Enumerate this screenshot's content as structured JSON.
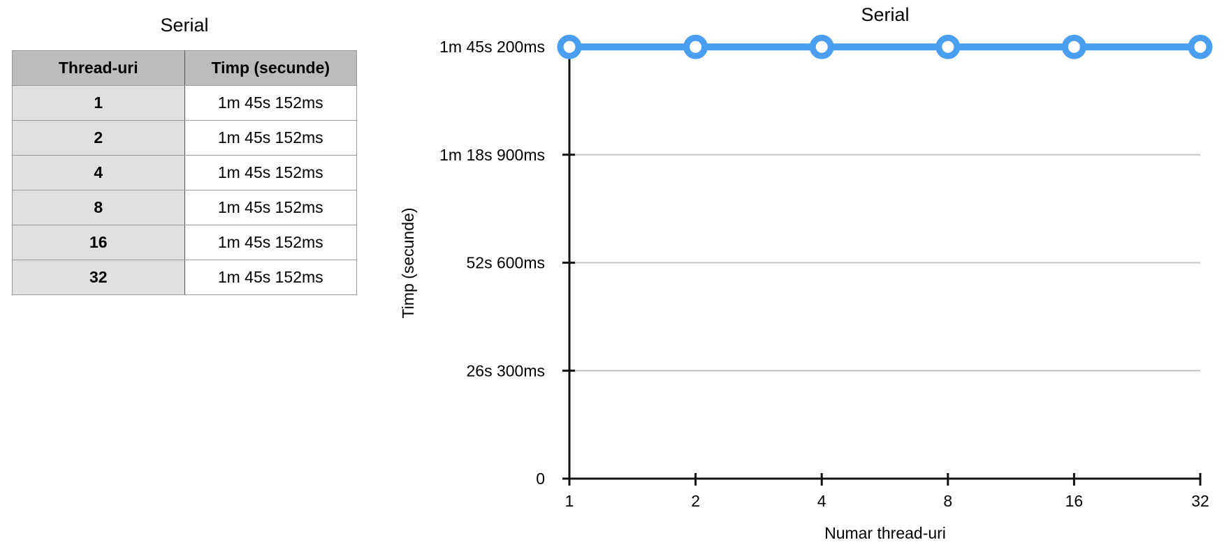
{
  "table": {
    "title": "Serial",
    "headers": [
      "Thread-uri",
      "Timp (secunde)"
    ],
    "rows": [
      [
        "1",
        "1m 45s 152ms"
      ],
      [
        "2",
        "1m 45s 152ms"
      ],
      [
        "4",
        "1m 45s 152ms"
      ],
      [
        "8",
        "1m 45s 152ms"
      ],
      [
        "16",
        "1m 45s 152ms"
      ],
      [
        "32",
        "1m 45s 152ms"
      ]
    ]
  },
  "chart_data": {
    "type": "line",
    "title": "Serial",
    "xlabel": "Numar thread-uri",
    "ylabel": "Timp (secunde)",
    "categories": [
      "1",
      "2",
      "4",
      "8",
      "16",
      "32"
    ],
    "series": [
      {
        "values": [
          105.152,
          105.152,
          105.152,
          105.152,
          105.152,
          105.152
        ]
      }
    ],
    "ylim": [
      0,
      105.2
    ],
    "yticks": [
      {
        "value": 0,
        "label": "0"
      },
      {
        "value": 26.3,
        "label": "26s 300ms"
      },
      {
        "value": 52.6,
        "label": "52s 600ms"
      },
      {
        "value": 78.9,
        "label": "1m 18s 900ms"
      },
      {
        "value": 105.2,
        "label": "1m 45s 200ms"
      }
    ],
    "grid": true,
    "legend": "none",
    "colors": {
      "line": "#4a9ef0",
      "grid": "#c4c4c4",
      "axis": "#111111",
      "marker_fill": "#ffffff"
    }
  }
}
